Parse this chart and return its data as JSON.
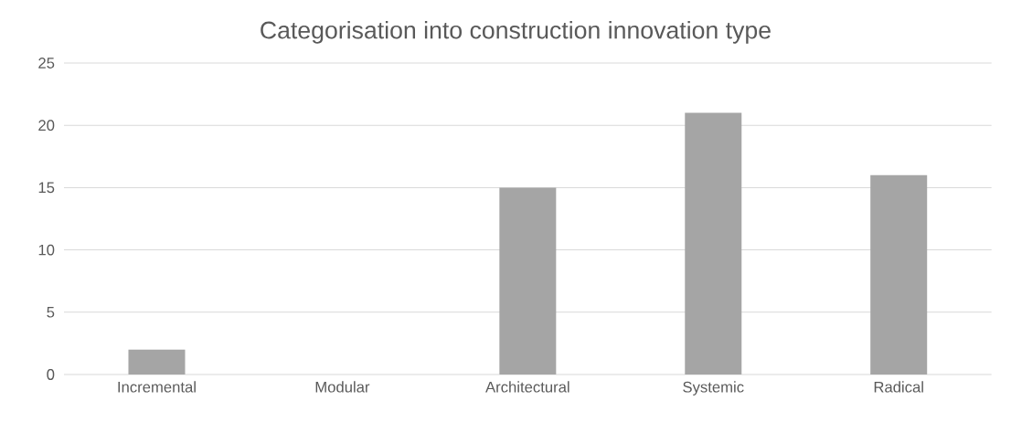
{
  "chart_data": {
    "type": "bar",
    "title": "Categorisation into construction innovation type",
    "categories": [
      "Incremental",
      "Modular",
      "Architectural",
      "Systemic",
      "Radical"
    ],
    "values": [
      2,
      0,
      15,
      21,
      16
    ],
    "color": "#a5a5a5",
    "ylim": [
      0,
      25
    ],
    "yticks": [
      0,
      5,
      10,
      15,
      20,
      25
    ],
    "grid": "y"
  }
}
